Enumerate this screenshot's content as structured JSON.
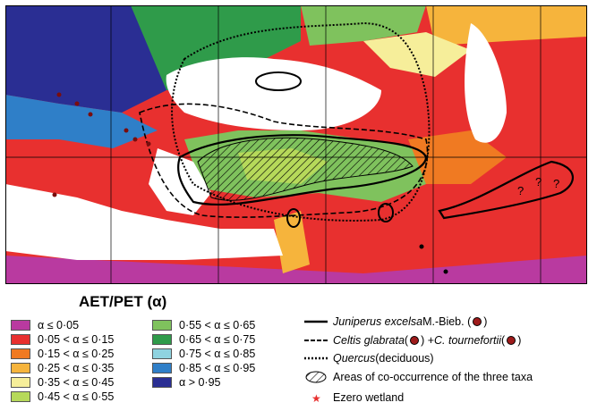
{
  "legend": {
    "title": "AET/PET (α)",
    "classes": [
      {
        "label": "α ≤ 0·05",
        "color": "#b93aa0"
      },
      {
        "label": "0·05 < α ≤ 0·15",
        "color": "#e8302f"
      },
      {
        "label": "0·15 < α ≤ 0·25",
        "color": "#f07a22"
      },
      {
        "label": "0·25 < α ≤ 0·35",
        "color": "#f6b43c"
      },
      {
        "label": "0·35 < α ≤ 0·45",
        "color": "#f6ee9a"
      },
      {
        "label": "0·45 < α ≤ 0·55",
        "color": "#b6d95a"
      },
      {
        "label": "0·55 < α ≤ 0·65",
        "color": "#7fc25d"
      },
      {
        "label": "0·65 < α ≤ 0·75",
        "color": "#2f9b4a"
      },
      {
        "label": "0·75 < α ≤ 0·85",
        "color": "#8fd3e0"
      },
      {
        "label": "0·85 < α ≤ 0·95",
        "color": "#2f7fc8"
      },
      {
        "label": "α > 0·95",
        "color": "#2a2e93"
      }
    ],
    "lines": {
      "juniperus": {
        "name": "Juniperus excelsa",
        "author": " M.-Bieb. (",
        "close": ")"
      },
      "celtis": {
        "name": "Celtis glabrata",
        "mid": " (",
        "mid2": ") + ",
        "name2": "C. tournefortii",
        "close": " (",
        "close2": ")"
      },
      "quercus": {
        "name": "Quercus",
        "suffix": " (deciduous)"
      },
      "co_occurrence": "Areas of co-occurrence of the three taxa",
      "ezero": "Ezero wetland"
    }
  },
  "map": {
    "question_marks": [
      "?",
      "?",
      "?"
    ],
    "colors": {
      "sea": "#ffffff",
      "dry": "#e8302f",
      "wet": "#2a2e93",
      "gridline": "#000000"
    }
  }
}
